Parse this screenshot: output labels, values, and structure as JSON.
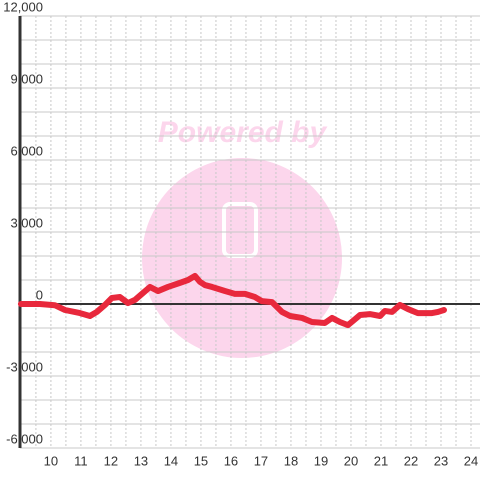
{
  "chart_data": {
    "type": "line",
    "watermark": "Powered by",
    "x": [
      9.0,
      9.63,
      10.13,
      10.47,
      10.97,
      11.3,
      11.53,
      11.8,
      12.03,
      12.3,
      12.57,
      12.8,
      13.07,
      13.3,
      13.57,
      13.9,
      14.3,
      14.57,
      14.8,
      14.97,
      15.13,
      15.37,
      15.8,
      16.13,
      16.47,
      16.8,
      17.03,
      17.37,
      17.7,
      17.97,
      18.37,
      18.7,
      19.13,
      19.37,
      19.63,
      19.9,
      20.3,
      20.63,
      20.97,
      21.13,
      21.37,
      21.63,
      21.9,
      22.23,
      22.7,
      22.9,
      23.1
    ],
    "series": [
      {
        "color": "#e8283c",
        "values": [
          0,
          0,
          -50,
          -250,
          -380,
          -500,
          -330,
          -40,
          250,
          290,
          40,
          170,
          460,
          710,
          540,
          710,
          880,
          1000,
          1170,
          920,
          790,
          710,
          540,
          420,
          420,
          290,
          120,
          80,
          -330,
          -500,
          -580,
          -750,
          -790,
          -580,
          -750,
          -880,
          -460,
          -420,
          -500,
          -290,
          -330,
          -40,
          -210,
          -380,
          -380,
          -330,
          -250
        ]
      }
    ],
    "xlim": [
      8.97,
      24.3
    ],
    "xticks": [
      10,
      11,
      12,
      13,
      14,
      15,
      16,
      17,
      18,
      19,
      20,
      21,
      22,
      23,
      24
    ],
    "ylim": [
      -6000,
      12000
    ],
    "yticks": [
      {
        "value": -6000,
        "label": "-6,000"
      },
      {
        "value": -3000,
        "label": "-3,000"
      },
      0,
      {
        "value": 3000,
        "label": "3,000"
      },
      {
        "value": 6000,
        "label": "6,000"
      },
      {
        "value": 9000,
        "label": "9,000"
      },
      {
        "value": 12000,
        "label": "12,000"
      }
    ],
    "grid": true
  }
}
